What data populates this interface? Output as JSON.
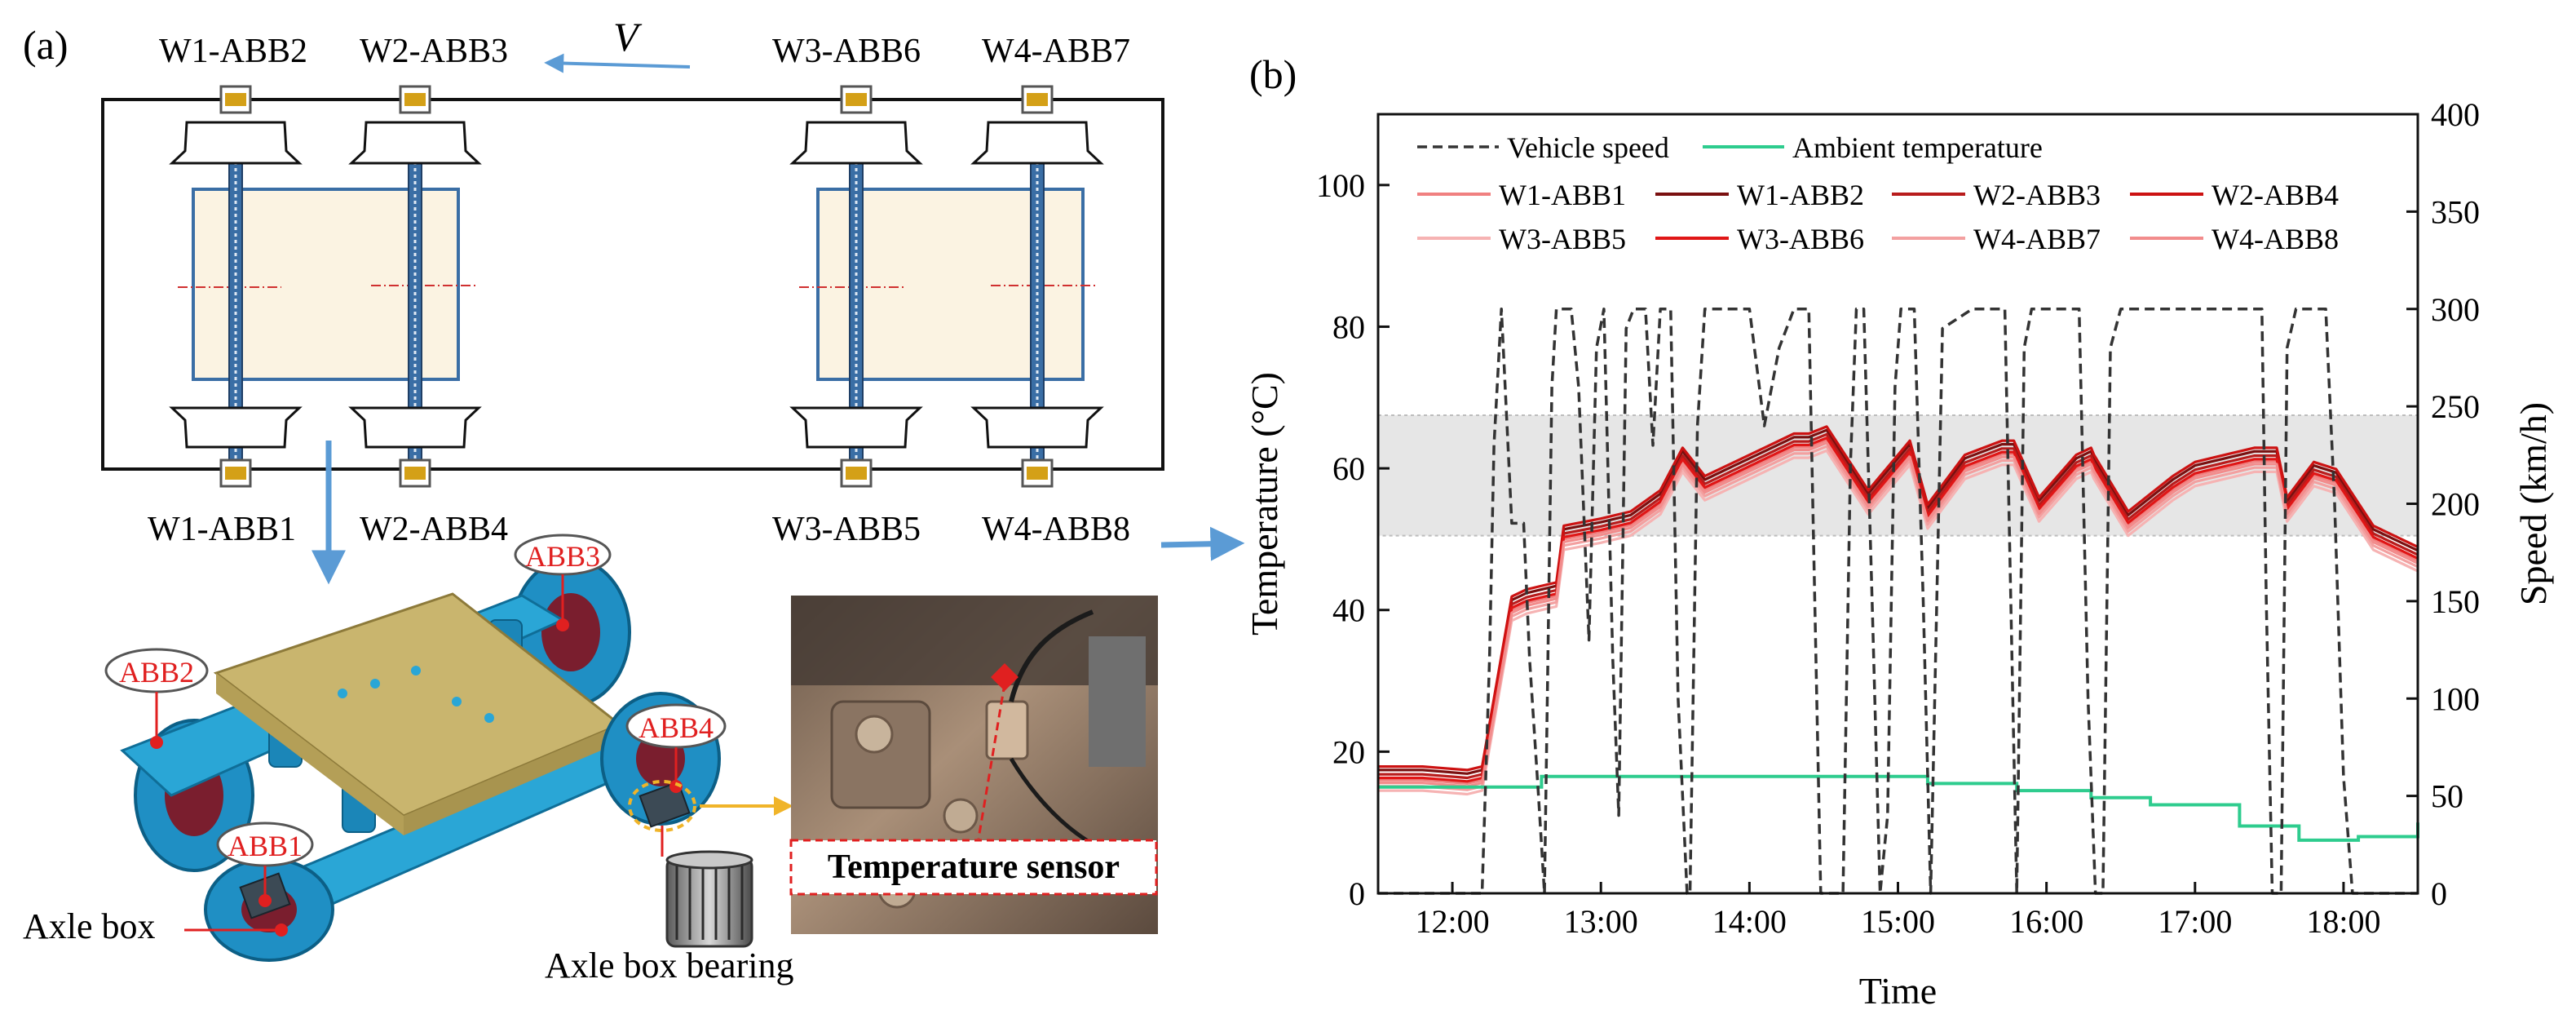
{
  "panel_a": {
    "label": "(a)",
    "velocity_label": "V",
    "top_bearings": [
      "W1-ABB2",
      "W2-ABB3",
      "W3-ABB6",
      "W4-ABB7"
    ],
    "bottom_bearings": [
      "W1-ABB1",
      "W2-ABB4",
      "W3-ABB5",
      "W4-ABB8"
    ],
    "bogie_callouts": [
      "ABB1",
      "ABB2",
      "ABB3",
      "ABB4"
    ],
    "axle_box_label": "Axle box",
    "axle_box_bearing_label": "Axle box bearing",
    "sensor_label": "Temperature sensor"
  },
  "panel_b": {
    "label": "(b)"
  },
  "colors": {
    "arrow": "#5b9bd5",
    "ambient": "#2ecc8e",
    "speed": "#333333",
    "band": "#e6e6e6",
    "bogie": "#29a9d8",
    "frame": "#c7b36a",
    "callout": "#e02020"
  },
  "chart_data": {
    "type": "line",
    "xlabel": "Time",
    "ylabel": "Temperature (°C)",
    "y2label": "Speed (km/h)",
    "xlim": [
      11.5,
      18.5
    ],
    "ylim": [
      0,
      110
    ],
    "y2lim": [
      0,
      400
    ],
    "x_ticks": [
      12,
      13,
      14,
      15,
      16,
      17,
      18
    ],
    "x_tick_labels": [
      "12:00",
      "13:00",
      "14:00",
      "15:00",
      "16:00",
      "17:00",
      "18:00"
    ],
    "y_ticks": [
      0,
      20,
      40,
      60,
      80,
      100
    ],
    "y2_ticks": [
      0,
      50,
      100,
      150,
      200,
      250,
      300,
      350,
      400
    ],
    "band": [
      50.5,
      67.5
    ],
    "legend": [
      "Vehicle speed",
      "Ambient temperature",
      "W1-ABB1",
      "W1-ABB2",
      "W2-ABB3",
      "W2-ABB4",
      "W3-ABB5",
      "W3-ABB6",
      "W4-ABB7",
      "W4-ABB8"
    ],
    "speed": {
      "name": "Vehicle speed",
      "x": [
        11.5,
        12.2,
        12.25,
        12.28,
        12.33,
        12.4,
        12.48,
        12.52,
        12.58,
        12.62,
        12.67,
        12.7,
        12.8,
        12.85,
        12.92,
        12.97,
        13.02,
        13.08,
        13.12,
        13.17,
        13.22,
        13.3,
        13.35,
        13.4,
        13.47,
        13.52,
        13.58,
        13.6,
        13.65,
        13.7,
        13.76,
        13.8,
        14.0,
        14.05,
        14.1,
        14.2,
        14.3,
        14.4,
        14.48,
        14.55,
        14.58,
        14.63,
        14.68,
        14.72,
        14.77,
        14.83,
        14.88,
        14.93,
        14.98,
        15.02,
        15.07,
        15.11,
        15.17,
        15.22,
        15.3,
        15.5,
        15.65,
        15.72,
        15.76,
        15.8,
        15.85,
        15.9,
        15.95,
        16.05,
        16.22,
        16.28,
        16.33,
        16.38,
        16.43,
        16.5,
        16.55,
        16.62,
        17.0,
        17.3,
        17.45,
        17.48,
        17.52,
        17.58,
        17.62,
        17.68,
        17.75,
        17.88,
        17.94,
        18.0,
        18.06,
        18.12,
        18.5
      ],
      "values": [
        0,
        0,
        120,
        230,
        300,
        190,
        190,
        120,
        50,
        0,
        260,
        300,
        300,
        260,
        130,
        280,
        300,
        120,
        40,
        290,
        300,
        300,
        230,
        300,
        300,
        100,
        0,
        0,
        240,
        300,
        300,
        300,
        300,
        270,
        240,
        280,
        300,
        300,
        0,
        0,
        0,
        0,
        220,
        300,
        300,
        140,
        0,
        40,
        260,
        300,
        300,
        300,
        150,
        0,
        290,
        300,
        300,
        300,
        150,
        0,
        280,
        300,
        300,
        300,
        300,
        100,
        0,
        0,
        280,
        300,
        300,
        300,
        300,
        300,
        300,
        150,
        0,
        0,
        280,
        300,
        300,
        300,
        200,
        60,
        0,
        0,
        0
      ]
    },
    "ambient": {
      "name": "Ambient temperature",
      "x": [
        11.5,
        12.2,
        12.6,
        13.6,
        14.5,
        15.2,
        15.8,
        16.3,
        16.7,
        17.3,
        17.7,
        18.1,
        18.5
      ],
      "values": [
        15,
        15,
        16.5,
        16.5,
        16.5,
        15.5,
        14.5,
        13.5,
        12.5,
        9.5,
        7.5,
        8,
        10
      ]
    },
    "series": [
      {
        "name": "W1-ABB1",
        "color": "#f08080",
        "offset": 0,
        "values": [
          16,
          16,
          15.5,
          16,
          40,
          41,
          42,
          50,
          51,
          52,
          55,
          61,
          57,
          59,
          61,
          63,
          63,
          64,
          55,
          60,
          62,
          53,
          60,
          62,
          62,
          54,
          60,
          61,
          60,
          52,
          57,
          59,
          60,
          61,
          61,
          61,
          61,
          54,
          59,
          58,
          50,
          47
        ]
      },
      {
        "name": "W1-ABB2",
        "color": "#7a1010",
        "offset": 1.4,
        "values": [
          16,
          16,
          15.5,
          16,
          40,
          41,
          42,
          50,
          51,
          52,
          55,
          61,
          57,
          59,
          61,
          63,
          63,
          64,
          55,
          60,
          62,
          53,
          60,
          62,
          62,
          54,
          60,
          61,
          60,
          52,
          57,
          59,
          60,
          61,
          61,
          61,
          61,
          54,
          59,
          58,
          50,
          47
        ]
      },
      {
        "name": "W2-ABB3",
        "color": "#b81c1c",
        "offset": 0.8,
        "values": [
          16,
          16,
          15.5,
          16,
          40,
          41,
          42,
          50,
          51,
          52,
          55,
          61,
          57,
          59,
          61,
          63,
          63,
          64,
          55,
          60,
          62,
          53,
          60,
          62,
          62,
          54,
          60,
          61,
          60,
          52,
          57,
          59,
          60,
          61,
          61,
          61,
          61,
          54,
          59,
          58,
          50,
          47
        ]
      },
      {
        "name": "W2-ABB4",
        "color": "#cc1212",
        "offset": 1.9,
        "values": [
          16,
          16,
          15.5,
          16,
          40,
          41,
          42,
          50,
          51,
          52,
          55,
          61,
          57,
          59,
          61,
          63,
          63,
          64,
          55,
          60,
          62,
          53,
          60,
          62,
          62,
          54,
          60,
          61,
          60,
          52,
          57,
          59,
          60,
          61,
          61,
          61,
          61,
          54,
          59,
          58,
          50,
          47
        ]
      },
      {
        "name": "W3-ABB5",
        "color": "#f6b3b3",
        "offset": -1.5,
        "values": [
          16,
          16,
          15.5,
          16,
          40,
          41,
          42,
          50,
          51,
          52,
          55,
          61,
          57,
          59,
          61,
          63,
          63,
          64,
          55,
          60,
          62,
          53,
          60,
          62,
          62,
          54,
          60,
          61,
          60,
          52,
          57,
          59,
          60,
          61,
          61,
          61,
          61,
          54,
          59,
          58,
          50,
          47
        ]
      },
      {
        "name": "W3-ABB6",
        "color": "#e01616",
        "offset": 0.3,
        "values": [
          16,
          16,
          15.5,
          16,
          40,
          41,
          42,
          50,
          51,
          52,
          55,
          61,
          57,
          59,
          61,
          63,
          63,
          64,
          55,
          60,
          62,
          53,
          60,
          62,
          62,
          54,
          60,
          61,
          60,
          52,
          57,
          59,
          60,
          61,
          61,
          61,
          61,
          54,
          59,
          58,
          50,
          47
        ]
      },
      {
        "name": "W4-ABB7",
        "color": "#f3a0a0",
        "offset": -0.9,
        "values": [
          16,
          16,
          15.5,
          16,
          40,
          41,
          42,
          50,
          51,
          52,
          55,
          61,
          57,
          59,
          61,
          63,
          63,
          64,
          55,
          60,
          62,
          53,
          60,
          62,
          62,
          54,
          60,
          61,
          60,
          52,
          57,
          59,
          60,
          61,
          61,
          61,
          61,
          54,
          59,
          58,
          50,
          47
        ]
      },
      {
        "name": "W4-ABB8",
        "color": "#f28c8c",
        "offset": -0.4,
        "values": [
          16,
          16,
          15.5,
          16,
          40,
          41,
          42,
          50,
          51,
          52,
          55,
          61,
          57,
          59,
          61,
          63,
          63,
          64,
          55,
          60,
          62,
          53,
          60,
          62,
          62,
          54,
          60,
          61,
          60,
          52,
          57,
          59,
          60,
          61,
          61,
          61,
          61,
          54,
          59,
          58,
          50,
          47
        ]
      }
    ],
    "temp_x": [
      11.5,
      11.8,
      12.1,
      12.2,
      12.4,
      12.5,
      12.7,
      12.75,
      13.0,
      13.2,
      13.4,
      13.55,
      13.7,
      13.9,
      14.1,
      14.3,
      14.4,
      14.52,
      14.8,
      15.0,
      15.08,
      15.2,
      15.45,
      15.7,
      15.78,
      15.95,
      16.2,
      16.3,
      16.32,
      16.55,
      16.85,
      17.0,
      17.2,
      17.4,
      17.45,
      17.48,
      17.55,
      17.62,
      17.8,
      17.95,
      18.2,
      18.5
    ]
  }
}
